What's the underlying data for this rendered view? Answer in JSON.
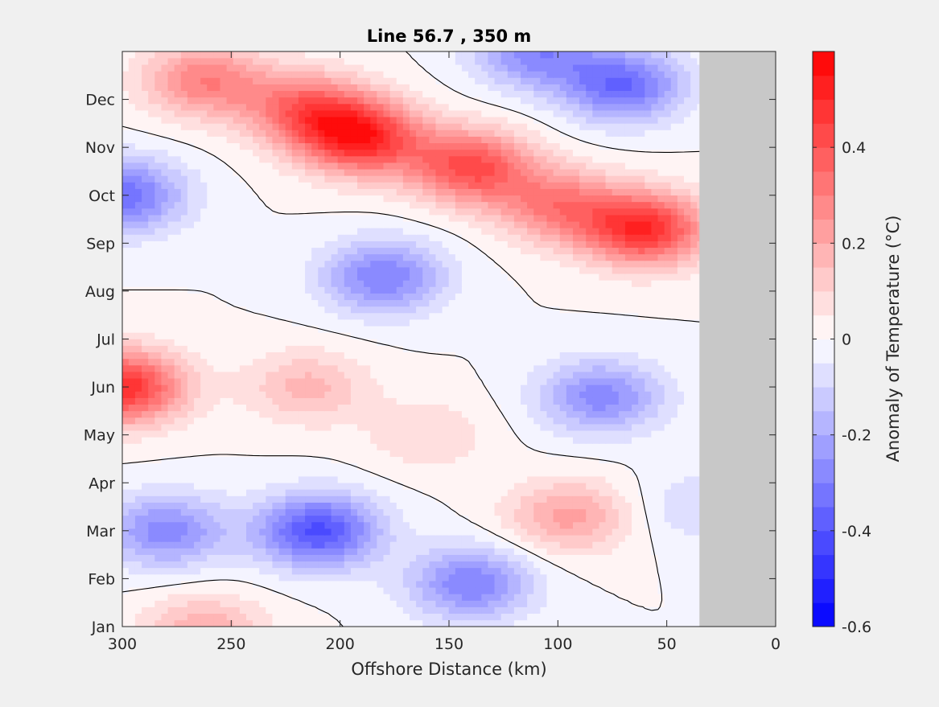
{
  "chart_data": {
    "type": "heatmap",
    "subtype": "filled-contour",
    "title": "Line 56.7 , 350 m",
    "xlabel": "Offshore Distance (km)",
    "ylabel": "",
    "xlim": [
      300,
      0
    ],
    "x_direction": "reversed",
    "x_ticks": [
      "300",
      "250",
      "200",
      "150",
      "100",
      "50",
      "0"
    ],
    "x_tick_values": [
      300,
      250,
      200,
      150,
      100,
      50,
      0
    ],
    "y_ticks": [
      "Jan",
      "Feb",
      "Mar",
      "Apr",
      "May",
      "Jun",
      "Jul",
      "Aug",
      "Sep",
      "Oct",
      "Nov",
      "Dec"
    ],
    "y_tick_values": [
      1,
      2,
      3,
      4,
      5,
      6,
      7,
      8,
      9,
      10,
      11,
      12
    ],
    "ylim": [
      1,
      13
    ],
    "no_data_region": {
      "x_range": [
        35,
        0
      ],
      "color": "#c8c8c8"
    },
    "colorbar": {
      "label": "Anomaly of Temperature (°C)",
      "range": [
        -0.6,
        0.6
      ],
      "step": 0.05,
      "tick_labels": [
        "-0.6",
        "-0.4",
        "-0.2",
        "0",
        "0.2",
        "0.4"
      ],
      "tick_values": [
        -0.6,
        -0.4,
        -0.2,
        0,
        0.2,
        0.4
      ]
    },
    "colors": {
      "negative": "#0000ff",
      "zero": "#ffffff",
      "positive": "#ff0000",
      "contour_line": "#000000"
    },
    "features": [
      {
        "x": 190,
        "month": 11.2,
        "value": 0.5
      },
      {
        "x": 215,
        "month": 11.8,
        "value": 0.35
      },
      {
        "x": 262,
        "month": 12.4,
        "value": 0.3
      },
      {
        "x": 140,
        "month": 10.6,
        "value": 0.42
      },
      {
        "x": 60,
        "month": 9.3,
        "value": 0.5
      },
      {
        "x": 100,
        "month": 9.8,
        "value": 0.3
      },
      {
        "x": 300,
        "month": 6.0,
        "value": 0.5
      },
      {
        "x": 215,
        "month": 6.0,
        "value": 0.17
      },
      {
        "x": 160,
        "month": 5.0,
        "value": 0.1
      },
      {
        "x": 95,
        "month": 3.3,
        "value": 0.22
      },
      {
        "x": 262,
        "month": 0.9,
        "value": 0.2
      },
      {
        "x": 300,
        "month": 10.0,
        "value": -0.35
      },
      {
        "x": 180,
        "month": 8.3,
        "value": -0.3
      },
      {
        "x": 80,
        "month": 5.8,
        "value": -0.28
      },
      {
        "x": 70,
        "month": 12.3,
        "value": -0.35
      },
      {
        "x": 110,
        "month": 13.0,
        "value": -0.28
      },
      {
        "x": 210,
        "month": 3.0,
        "value": -0.42
      },
      {
        "x": 280,
        "month": 3.0,
        "value": -0.28
      },
      {
        "x": 140,
        "month": 1.9,
        "value": -0.3
      },
      {
        "x": 35,
        "month": 3.5,
        "value": -0.1
      }
    ]
  }
}
